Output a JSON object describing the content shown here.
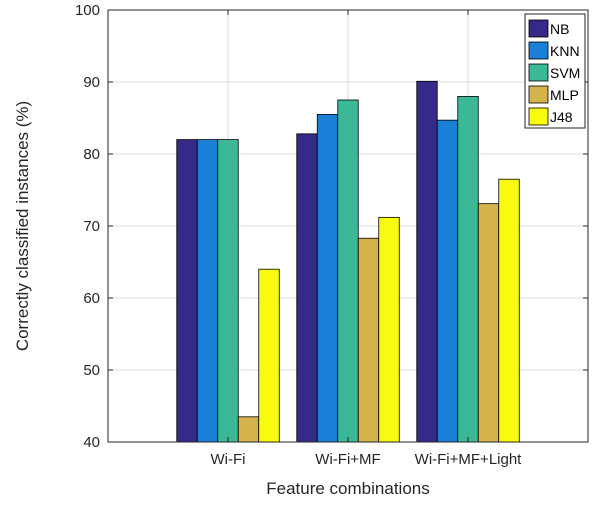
{
  "chart_data": {
    "type": "bar",
    "title": "",
    "xlabel": "Feature combinations",
    "ylabel": "Correctly classified instances (%)",
    "ylim": [
      40,
      100
    ],
    "yticks": [
      40,
      50,
      60,
      70,
      80,
      90,
      100
    ],
    "grid": true,
    "legend_position": "top-right",
    "categories": [
      "Wi-Fi",
      "Wi-Fi+MF",
      "Wi-Fi+MF+Light"
    ],
    "series": [
      {
        "name": "NB",
        "color": "#352a87",
        "values": [
          82.0,
          82.8,
          90.1
        ]
      },
      {
        "name": "KNN",
        "color": "#1a7fd6",
        "values": [
          82.0,
          85.5,
          84.7
        ]
      },
      {
        "name": "SVM",
        "color": "#3bb896",
        "values": [
          82.0,
          87.5,
          88.0
        ]
      },
      {
        "name": "MLP",
        "color": "#d4b24c",
        "values": [
          43.5,
          68.3,
          73.1
        ]
      },
      {
        "name": "J48",
        "color": "#f9fb0e",
        "values": [
          64.0,
          71.2,
          76.5
        ]
      }
    ]
  }
}
